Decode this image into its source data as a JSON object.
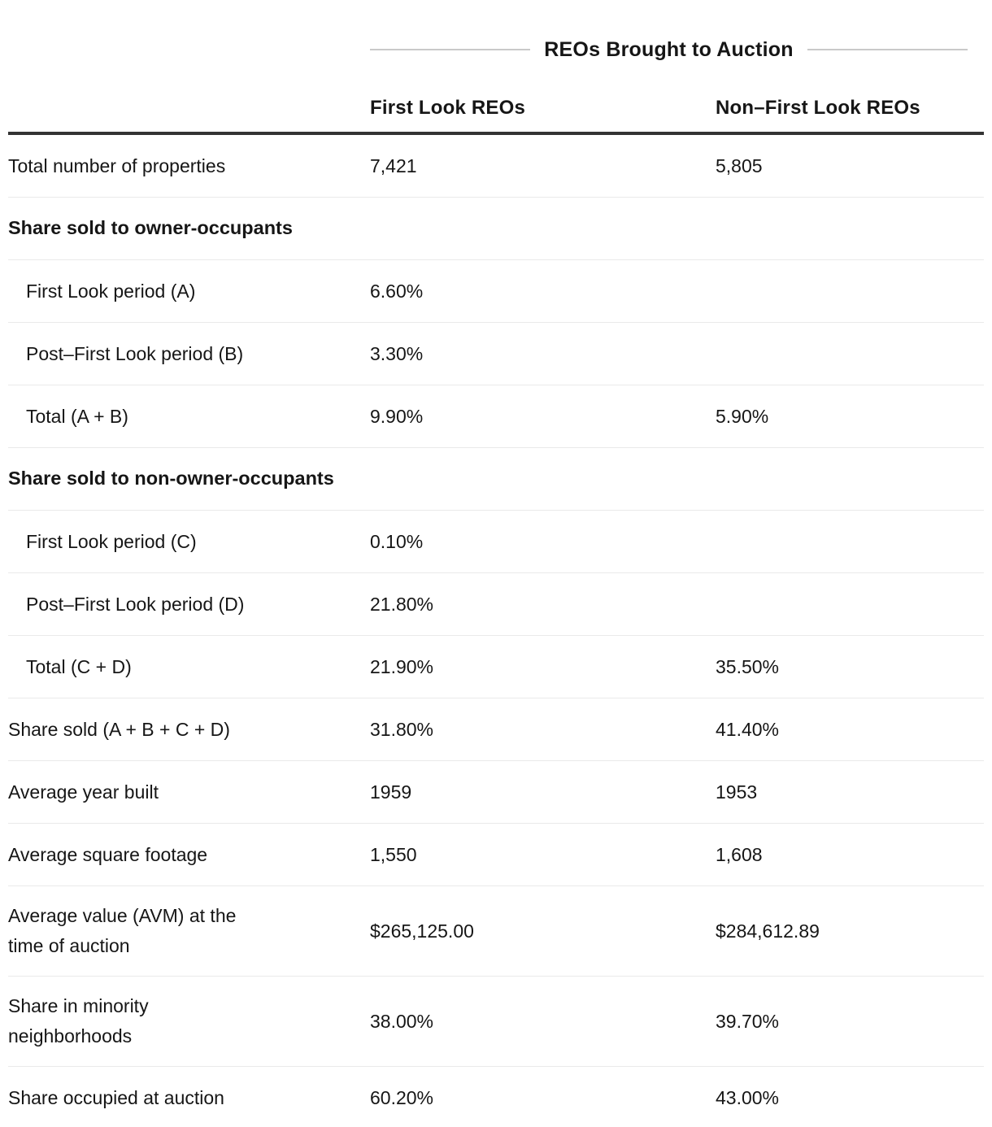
{
  "table": {
    "title": "REOs Brought to Auction",
    "columns": [
      "First Look REOs",
      "Non–First Look REOs"
    ],
    "rows": [
      {
        "type": "data",
        "label": "Total number of properties",
        "col1": "7,421",
        "col2": "5,805"
      },
      {
        "type": "section",
        "label": "Share sold to owner-occupants",
        "col1": "",
        "col2": ""
      },
      {
        "type": "sub",
        "label": "First Look period (A)",
        "col1": "6.60%",
        "col2": ""
      },
      {
        "type": "sub",
        "label": "Post–First Look period (B)",
        "col1": "3.30%",
        "col2": ""
      },
      {
        "type": "sub",
        "label": "Total (A + B)",
        "col1": "9.90%",
        "col2": "5.90%"
      },
      {
        "type": "section",
        "label": "Share sold to non-owner-occupants",
        "col1": "",
        "col2": ""
      },
      {
        "type": "sub",
        "label": "First Look period (C)",
        "col1": "0.10%",
        "col2": ""
      },
      {
        "type": "sub",
        "label": "Post–First Look period (D)",
        "col1": "21.80%",
        "col2": ""
      },
      {
        "type": "sub",
        "label": "Total (C + D)",
        "col1": "21.90%",
        "col2": "35.50%"
      },
      {
        "type": "data",
        "label": "Share sold (A + B + C + D)",
        "col1": "31.80%",
        "col2": "41.40%"
      },
      {
        "type": "data",
        "label": "Average year built",
        "col1": "1959",
        "col2": "1953"
      },
      {
        "type": "data",
        "label": "Average square footage",
        "col1": "1,550",
        "col2": "1,608"
      },
      {
        "type": "data",
        "label": "Average value (AVM) at the time of auction",
        "col1": "$265,125.00",
        "col2": "$284,612.89"
      },
      {
        "type": "data",
        "label": "Share in minority neighborhoods",
        "col1": "38.00%",
        "col2": "39.70%"
      },
      {
        "type": "data",
        "label": "Share occupied at auction",
        "col1": "60.20%",
        "col2": "43.00%"
      }
    ]
  },
  "colors": {
    "text": "#161616",
    "header_rule": "#333333",
    "row_separator": "#eaeaea",
    "title_line": "#c9c9c9",
    "background": "#ffffff"
  }
}
